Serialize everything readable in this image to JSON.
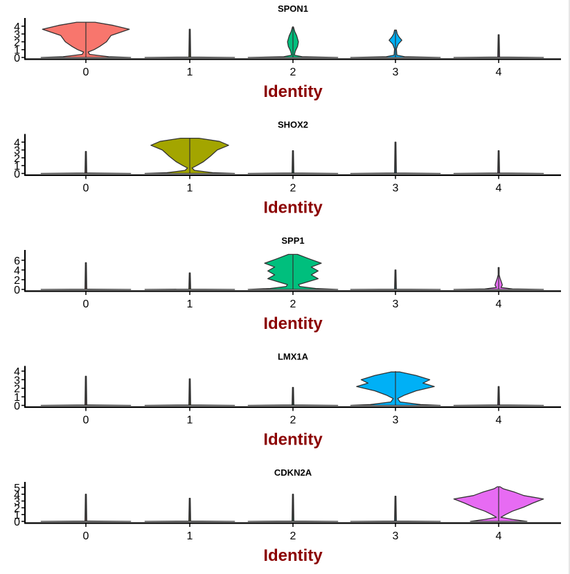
{
  "chart_data": [
    {
      "type": "violin",
      "title": "SPON1",
      "xlabel": "Identity",
      "ylabel": "",
      "categories": [
        "0",
        "1",
        "2",
        "3",
        "4"
      ],
      "yticks": [
        0,
        1,
        2,
        3,
        4
      ],
      "ylim": [
        0,
        4.6
      ],
      "colors": [
        "#F8766D",
        "#A3A500",
        "#00BF7D",
        "#00B0F6",
        "#E76BF3"
      ],
      "max_values": [
        4.5,
        3.6,
        3.9,
        3.5,
        2.9
      ],
      "violins": [
        {
          "widths": [
            [
              0,
              0.98
            ],
            [
              0.1,
              0.5
            ],
            [
              0.4,
              0.08
            ],
            [
              0.7,
              0.05
            ],
            [
              1.0,
              0.18
            ],
            [
              1.4,
              0.3
            ],
            [
              2.0,
              0.45
            ],
            [
              2.8,
              0.55
            ],
            [
              3.6,
              0.95
            ],
            [
              4.1,
              0.6
            ],
            [
              4.5,
              0.2
            ]
          ]
        },
        {
          "widths": [
            [
              0,
              0.98
            ],
            [
              0.05,
              0.02
            ],
            [
              3.6,
              0.01
            ]
          ]
        },
        {
          "widths": [
            [
              0,
              0.98
            ],
            [
              0.1,
              0.2
            ],
            [
              0.3,
              0.03
            ],
            [
              0.8,
              0.05
            ],
            [
              1.4,
              0.1
            ],
            [
              2.0,
              0.12
            ],
            [
              2.8,
              0.08
            ],
            [
              3.3,
              0.04
            ],
            [
              3.9,
              0.01
            ]
          ]
        },
        {
          "widths": [
            [
              0,
              0.98
            ],
            [
              0.1,
              0.2
            ],
            [
              0.3,
              0.03
            ],
            [
              1.1,
              0.02
            ],
            [
              1.7,
              0.06
            ],
            [
              2.2,
              0.14
            ],
            [
              2.6,
              0.08
            ],
            [
              3.0,
              0.04
            ],
            [
              3.5,
              0.02
            ]
          ]
        },
        {
          "widths": [
            [
              0,
              0.98
            ],
            [
              0.05,
              0.02
            ],
            [
              2.9,
              0.01
            ]
          ]
        }
      ]
    },
    {
      "type": "violin",
      "title": "SHOX2",
      "xlabel": "Identity",
      "ylabel": "",
      "categories": [
        "0",
        "1",
        "2",
        "3",
        "4"
      ],
      "yticks": [
        0,
        1,
        2,
        3,
        4
      ],
      "ylim": [
        0,
        4.6
      ],
      "colors": [
        "#F8766D",
        "#A3A500",
        "#00BF7D",
        "#00B0F6",
        "#E76BF3"
      ],
      "max_values": [
        2.8,
        4.5,
        2.9,
        4.0,
        2.9
      ],
      "violins": [
        {
          "widths": [
            [
              0,
              0.98
            ],
            [
              0.05,
              0.02
            ],
            [
              2.8,
              0.01
            ]
          ]
        },
        {
          "widths": [
            [
              0,
              0.98
            ],
            [
              0.1,
              0.5
            ],
            [
              0.4,
              0.1
            ],
            [
              0.7,
              0.05
            ],
            [
              1.0,
              0.15
            ],
            [
              1.5,
              0.3
            ],
            [
              2.2,
              0.45
            ],
            [
              3.0,
              0.6
            ],
            [
              3.6,
              0.85
            ],
            [
              4.1,
              0.65
            ],
            [
              4.5,
              0.2
            ]
          ]
        },
        {
          "widths": [
            [
              0,
              0.98
            ],
            [
              0.05,
              0.02
            ],
            [
              2.9,
              0.01
            ]
          ]
        },
        {
          "widths": [
            [
              0,
              0.98
            ],
            [
              0.05,
              0.02
            ],
            [
              4.0,
              0.01
            ]
          ]
        },
        {
          "widths": [
            [
              0,
              0.98
            ],
            [
              0.05,
              0.02
            ],
            [
              2.9,
              0.01
            ]
          ]
        }
      ]
    },
    {
      "type": "violin",
      "title": "SPP1",
      "xlabel": "Identity",
      "ylabel": "",
      "categories": [
        "0",
        "1",
        "2",
        "3",
        "4"
      ],
      "yticks": [
        0,
        2,
        4,
        6
      ],
      "ylim": [
        0,
        7.4
      ],
      "colors": [
        "#F8766D",
        "#A3A500",
        "#00BF7D",
        "#00B0F6",
        "#E76BF3"
      ],
      "max_values": [
        5.5,
        3.4,
        7.2,
        4.0,
        4.5
      ],
      "violins": [
        {
          "widths": [
            [
              0,
              0.98
            ],
            [
              0.05,
              0.02
            ],
            [
              5.5,
              0.01
            ]
          ]
        },
        {
          "widths": [
            [
              0,
              0.98
            ],
            [
              0.05,
              0.02
            ],
            [
              3.4,
              0.01
            ]
          ]
        },
        {
          "widths": [
            [
              0,
              0.98
            ],
            [
              0.2,
              0.5
            ],
            [
              0.6,
              0.15
            ],
            [
              1.0,
              0.12
            ],
            [
              1.5,
              0.3
            ],
            [
              2.2,
              0.55
            ],
            [
              3.0,
              0.4
            ],
            [
              3.8,
              0.55
            ],
            [
              4.6,
              0.4
            ],
            [
              5.4,
              0.62
            ],
            [
              6.3,
              0.35
            ],
            [
              7.2,
              0.1
            ]
          ]
        },
        {
          "widths": [
            [
              0,
              0.98
            ],
            [
              0.05,
              0.02
            ],
            [
              4.0,
              0.01
            ]
          ]
        },
        {
          "widths": [
            [
              0,
              0.98
            ],
            [
              0.1,
              0.3
            ],
            [
              0.4,
              0.05
            ],
            [
              0.9,
              0.08
            ],
            [
              1.5,
              0.06
            ],
            [
              2.3,
              0.03
            ],
            [
              3.0,
              0.01
            ],
            [
              4.5,
              0.01
            ]
          ]
        }
      ]
    },
    {
      "type": "violin",
      "title": "LMX1A",
      "xlabel": "Identity",
      "ylabel": "",
      "categories": [
        "0",
        "1",
        "2",
        "3",
        "4"
      ],
      "yticks": [
        0,
        1,
        2,
        3,
        4
      ],
      "ylim": [
        0,
        4.2
      ],
      "colors": [
        "#F8766D",
        "#A3A500",
        "#00BF7D",
        "#00B0F6",
        "#E76BF3"
      ],
      "max_values": [
        3.4,
        3.1,
        2.1,
        4.0,
        2.2
      ],
      "violins": [
        {
          "widths": [
            [
              0,
              0.98
            ],
            [
              0.05,
              0.02
            ],
            [
              3.4,
              0.01
            ]
          ]
        },
        {
          "widths": [
            [
              0,
              0.98
            ],
            [
              0.05,
              0.02
            ],
            [
              3.1,
              0.01
            ]
          ]
        },
        {
          "widths": [
            [
              0,
              0.98
            ],
            [
              0.05,
              0.02
            ],
            [
              2.1,
              0.01
            ]
          ]
        },
        {
          "widths": [
            [
              0,
              0.98
            ],
            [
              0.1,
              0.55
            ],
            [
              0.4,
              0.1
            ],
            [
              0.8,
              0.05
            ],
            [
              1.2,
              0.2
            ],
            [
              1.7,
              0.45
            ],
            [
              2.2,
              0.85
            ],
            [
              2.6,
              0.6
            ],
            [
              3.0,
              0.75
            ],
            [
              3.5,
              0.45
            ],
            [
              3.9,
              0.1
            ]
          ]
        },
        {
          "widths": [
            [
              0,
              0.98
            ],
            [
              0.05,
              0.02
            ],
            [
              2.2,
              0.01
            ]
          ]
        }
      ]
    },
    {
      "type": "violin",
      "title": "CDKN2A",
      "xlabel": "Identity",
      "ylabel": "",
      "categories": [
        "0",
        "1",
        "2",
        "3",
        "4"
      ],
      "yticks": [
        0,
        1,
        2,
        3,
        4,
        5
      ],
      "ylim": [
        0,
        5.3
      ],
      "colors": [
        "#F8766D",
        "#A3A500",
        "#00BF7D",
        "#00B0F6",
        "#E76BF3"
      ],
      "max_values": [
        4.0,
        3.4,
        4.0,
        3.7,
        5.1
      ],
      "violins": [
        {
          "widths": [
            [
              0,
              0.98
            ],
            [
              0.05,
              0.02
            ],
            [
              4.0,
              0.01
            ]
          ]
        },
        {
          "widths": [
            [
              0,
              0.98
            ],
            [
              0.05,
              0.02
            ],
            [
              3.4,
              0.01
            ]
          ]
        },
        {
          "widths": [
            [
              0,
              0.98
            ],
            [
              0.05,
              0.02
            ],
            [
              4.0,
              0.01
            ]
          ]
        },
        {
          "widths": [
            [
              0,
              0.98
            ],
            [
              0.05,
              0.02
            ],
            [
              3.7,
              0.01
            ]
          ]
        },
        {
          "widths": [
            [
              0,
              0.62
            ],
            [
              0.3,
              0.3
            ],
            [
              0.6,
              0.05
            ],
            [
              1.0,
              0.15
            ],
            [
              1.5,
              0.3
            ],
            [
              2.1,
              0.55
            ],
            [
              2.7,
              0.75
            ],
            [
              3.3,
              0.98
            ],
            [
              3.8,
              0.55
            ],
            [
              4.3,
              0.35
            ],
            [
              4.8,
              0.1
            ],
            [
              5.1,
              0.03
            ]
          ]
        }
      ]
    }
  ],
  "layout": {
    "panel_count": 5
  }
}
